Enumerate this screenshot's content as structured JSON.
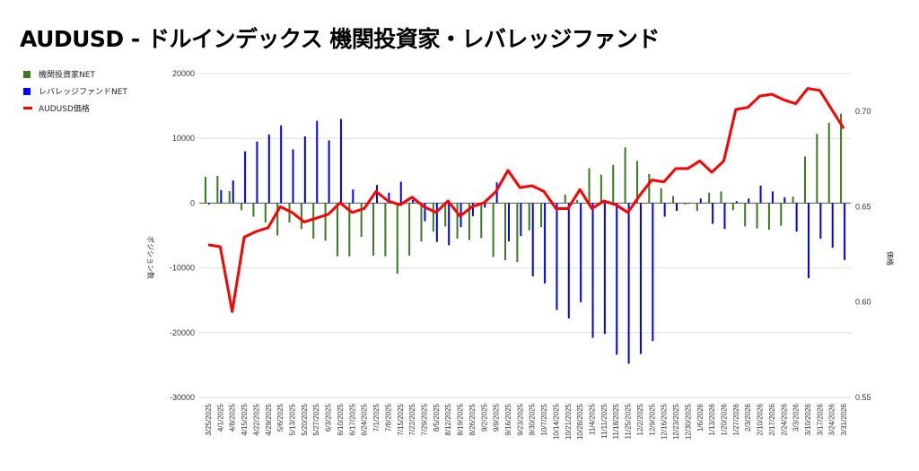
{
  "title": "AUDUSD - ドルインデックス 機関投資家・レバレッジファンド",
  "chart_data": {
    "type": "bar+line",
    "title": "AUDUSD - ドルインデックス 機関投資家・レバレッジファンド",
    "ylabel_left": "ポジション数",
    "ylabel_right": "価格",
    "ylim_left": [
      -30000,
      20000
    ],
    "yticks_left": [
      "20000",
      "10000",
      "0",
      "-10000",
      "-20000",
      "-30000"
    ],
    "ylim_right": [
      0.55,
      0.72
    ],
    "yticks_right": [
      "0.70",
      "0.65",
      "0.60",
      "0.55"
    ],
    "grid": true,
    "legend_position": "top-left",
    "colors": {
      "institutional": "#3a7a1e",
      "leveraged": "#0000ff",
      "price": "#ff0000"
    },
    "categories": [
      "3/25/2025",
      "4/1/2025",
      "4/8/2025",
      "4/15/2025",
      "4/22/2025",
      "4/29/2025",
      "5/6/2025",
      "5/13/2025",
      "5/20/2025",
      "5/27/2025",
      "6/3/2025",
      "6/10/2025",
      "6/17/2025",
      "6/24/2025",
      "7/1/2025",
      "7/8/2025",
      "7/15/2025",
      "7/22/2025",
      "7/29/2025",
      "8/5/2025",
      "8/12/2025",
      "8/19/2025",
      "8/26/2025",
      "9/2/2025",
      "9/9/2025",
      "9/16/2025",
      "9/23/2025",
      "9/30/2025",
      "10/7/2025",
      "10/14/2025",
      "10/21/2025",
      "10/28/2025",
      "11/4/2025",
      "11/11/2025",
      "11/18/2025",
      "11/25/2025",
      "12/2/2025",
      "12/9/2025",
      "12/16/2025",
      "12/23/2025",
      "12/30/2025",
      "1/6/2026",
      "1/13/2026",
      "1/20/2026",
      "1/27/2026",
      "2/3/2026",
      "2/10/2026",
      "2/17/2026",
      "2/24/2026",
      "3/3/2026",
      "3/10/2026",
      "3/17/2026",
      "3/24/2026",
      "3/31/2026"
    ],
    "series": [
      {
        "name": "機関投資家NET",
        "type": "bar",
        "axis": "left",
        "values": [
          4060,
          4200,
          1850,
          -1100,
          -2100,
          -3000,
          -5000,
          -3000,
          -4000,
          -5500,
          -5800,
          -8200,
          -8200,
          -5200,
          -8100,
          -8200,
          -10900,
          -8100,
          -5900,
          -4400,
          -3600,
          -5500,
          -5700,
          -5400,
          -8300,
          -8800,
          -9100,
          -4200,
          -3700,
          200,
          1300,
          500,
          5400,
          4400,
          5900,
          8600,
          6500,
          4500,
          2300,
          1100,
          -200,
          -1200,
          1600,
          1800,
          -1100,
          -3600,
          -3900,
          -4100,
          -3500,
          1000,
          7200,
          10700,
          12400,
          13800
        ]
      },
      {
        "name": "レバレッジファンドNET",
        "type": "bar",
        "axis": "left",
        "values": [
          -200,
          2000,
          3500,
          8000,
          9500,
          10600,
          12000,
          8300,
          10300,
          12700,
          9700,
          13000,
          2100,
          0,
          2800,
          1600,
          3300,
          500,
          -2800,
          -6000,
          -6500,
          -3700,
          -2000,
          -700,
          3200,
          -5900,
          -5100,
          -11300,
          -12400,
          -16500,
          -17800,
          -15300,
          -20800,
          -20200,
          -23400,
          -24800,
          -23300,
          -21300,
          -2100,
          -1200,
          0,
          700,
          -3200,
          -4000,
          300,
          700,
          2700,
          1800,
          900,
          -4400,
          -11600,
          -5500,
          -6900,
          -8800
        ]
      },
      {
        "name": "AUDUSD価格",
        "type": "line",
        "axis": "right",
        "values": [
          0.63,
          0.629,
          0.595,
          0.634,
          0.637,
          0.639,
          0.65,
          0.647,
          0.642,
          0.644,
          0.646,
          0.652,
          0.647,
          0.649,
          0.658,
          0.653,
          0.651,
          0.655,
          0.65,
          0.647,
          0.653,
          0.645,
          0.65,
          0.652,
          0.658,
          0.669,
          0.66,
          0.661,
          0.658,
          0.649,
          0.649,
          0.659,
          0.649,
          0.653,
          0.651,
          0.647,
          0.656,
          0.664,
          0.663,
          0.67,
          0.67,
          0.674,
          0.668,
          0.674,
          0.701,
          0.702,
          0.708,
          0.709,
          0.706,
          0.704,
          0.712,
          0.711,
          0.701,
          0.691
        ]
      }
    ]
  }
}
